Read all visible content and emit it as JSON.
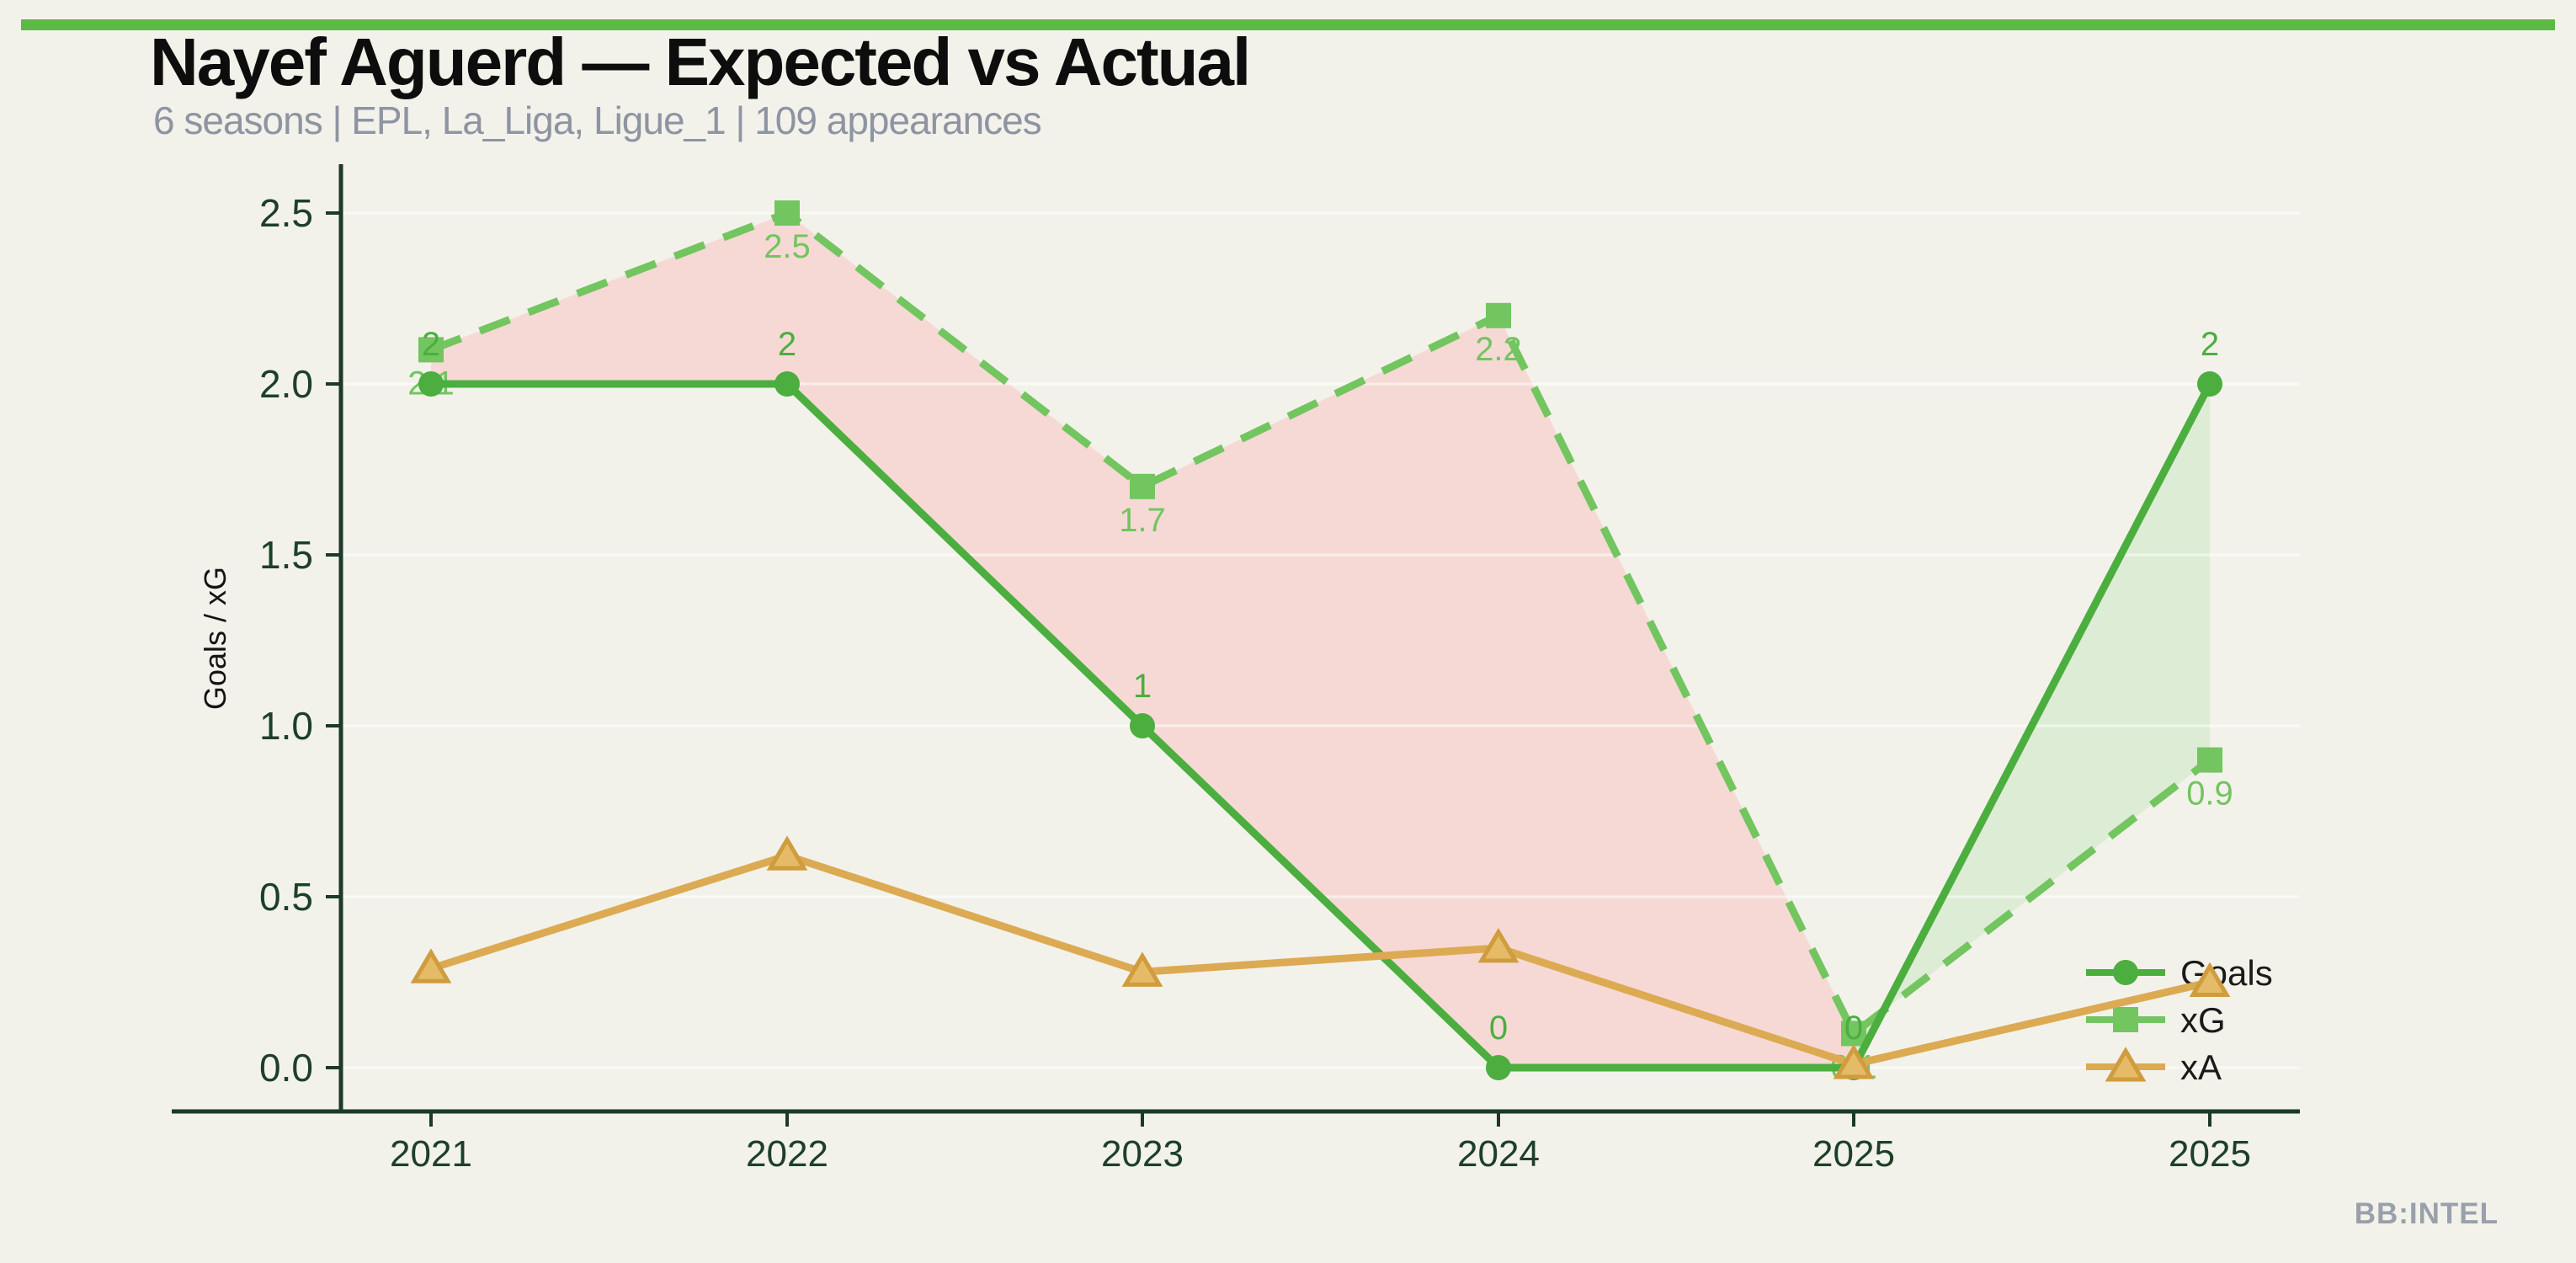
{
  "page": {
    "background": "#f2f2eb",
    "topbar_color": "#5cb945"
  },
  "header": {
    "title": "Nayef Aguerd — Expected vs Actual",
    "subtitle": "6 seasons | EPL, La_Liga, Ligue_1 | 109 appearances"
  },
  "watermark": "BB:INTEL",
  "legend": {
    "items": [
      {
        "label": "Goals"
      },
      {
        "label": "xG"
      },
      {
        "label": "xA"
      }
    ]
  },
  "chart_data": {
    "type": "line",
    "title": "Nayef Aguerd — Expected vs Actual",
    "subtitle": "6 seasons | EPL, La_Liga, Ligue_1 | 109 appearances",
    "x_categories": [
      "2021",
      "2022",
      "2023",
      "2024",
      "2025",
      "2025"
    ],
    "ylabel": "Goals / xG",
    "xlabel": "",
    "yticks": [
      "0.0",
      "0.5",
      "1.0",
      "1.5",
      "2.0",
      "2.5"
    ],
    "ylim": [
      0,
      2.5
    ],
    "grid": "horizontal-faint",
    "legend_position": "lower-right-no-frame",
    "axis_color": "#1c3a26",
    "tick_label_color": "#1d4026",
    "series": [
      {
        "name": "Goals",
        "color": "#4bae3f",
        "marker": "circle",
        "line_style": "solid",
        "values": [
          2,
          2,
          1,
          0,
          0,
          2
        ],
        "point_labels": [
          "2",
          "2",
          "1",
          "0",
          "0",
          "2"
        ]
      },
      {
        "name": "xG",
        "color": "#72c55f",
        "marker": "square",
        "line_style": "dashed",
        "values": [
          2.1,
          2.5,
          1.7,
          2.2,
          0.1,
          0.9
        ],
        "point_labels": [
          "2.1",
          "2.5",
          "1.7",
          "2.2",
          "0.1",
          "0.9"
        ]
      },
      {
        "name": "xA",
        "color": "#dcaa52",
        "marker": "triangle",
        "marker_fill": "#e6bb67",
        "marker_edge": "#cf9c3e",
        "line_style": "solid",
        "values": [
          0.29,
          0.62,
          0.28,
          0.35,
          0.01,
          0.25
        ],
        "point_labels": []
      }
    ],
    "fills": [
      {
        "between": [
          "xG",
          "Goals"
        ],
        "where": "xG > Goals",
        "x_span": [
          "2021",
          "2025"
        ],
        "color": "#f6d9d5"
      },
      {
        "between": [
          "Goals",
          "xG"
        ],
        "where": "Goals > xG",
        "x_span": [
          "2025",
          "2025"
        ],
        "color": "#ddecd4"
      }
    ]
  }
}
